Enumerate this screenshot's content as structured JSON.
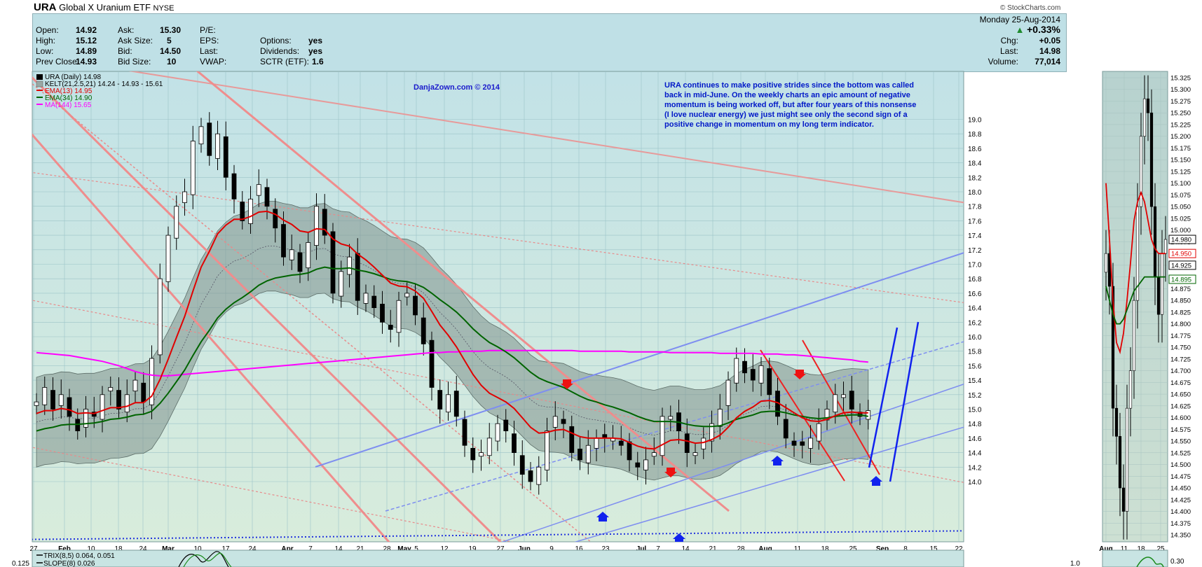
{
  "header": {
    "symbol": "URA",
    "name": "Global X Uranium ETF",
    "exchange": "NYSE",
    "copyright": "© StockCharts.com"
  },
  "quote": {
    "open_label": "Open:",
    "open": "14.92",
    "high_label": "High:",
    "high": "15.12",
    "low_label": "Low:",
    "low": "14.89",
    "prevclose_label": "Prev Close:",
    "prevclose": "14.93",
    "ask_label": "Ask:",
    "ask": "15.30",
    "asksize_label": "Ask Size:",
    "asksize": "5",
    "bid_label": "Bid:",
    "bid": "14.50",
    "bidsize_label": "Bid Size:",
    "bidsize": "10",
    "pe_label": "P/E:",
    "eps_label": "EPS:",
    "last_label": "Last:",
    "vwap_label": "VWAP:",
    "options_label": "Options:",
    "options": "yes",
    "dividends_label": "Dividends:",
    "dividends": "yes",
    "sctr_label": "SCTR (ETF):",
    "sctr": "1.6",
    "date": "Monday 25-Aug-2014",
    "pct_change": "+0.33%",
    "chg_label": "Chg:",
    "chg": "+0.05",
    "last2_label": "Last:",
    "last2": "14.98",
    "volume_label": "Volume:",
    "volume": "77,014"
  },
  "legend": {
    "main": "URA (Daily) 14.98",
    "kelt": "KELT(21,2.5,21) 14.24 - 14.93 - 15.61",
    "ema13": "EMA(13) 14.95",
    "ema34": "EMA(34) 14.90",
    "ma144": "MA(144) 15.65"
  },
  "watermark": "DanjaZown.com © 2014",
  "annotation": "URA continues to make positive strides since the bottom was called back in mid-June. On the weekly charts an epic amount of negative momentum is being worked off, but after four years of this nonsense (I love nuclear energy) we just might see only the second sign of a positive change in momentum on my long term indicator.",
  "colors": {
    "panel_bg": "#c2e2e7",
    "ema13": "#e00000",
    "ema34": "#006400",
    "ma144": "#ff00ff",
    "kelt_fill": "#7a8c88",
    "trend_blue": "#3a4bd8",
    "annotation_text": "#0018c8"
  },
  "chart_data": {
    "type": "candlestick",
    "y_range": [
      13.9,
      19.2
    ],
    "y_ticks": [
      14.0,
      14.2,
      14.4,
      14.6,
      14.8,
      15.0,
      15.2,
      15.4,
      15.6,
      15.8,
      16.0,
      16.2,
      16.4,
      16.6,
      16.8,
      17.0,
      17.2,
      17.4,
      17.6,
      17.8,
      18.0,
      18.2,
      18.4,
      18.6,
      18.8,
      19.0
    ],
    "x_ticks": [
      "27",
      "Feb",
      "10",
      "18",
      "24",
      "Mar",
      "10",
      "17",
      "24",
      "Apr",
      "7",
      "14",
      "21",
      "28",
      "May",
      "5",
      "12",
      "19",
      "27",
      "Jun",
      "9",
      "16",
      "23",
      "Jul",
      "7",
      "14",
      "21",
      "28",
      "Aug",
      "11",
      "18",
      "25",
      "Sep",
      "8",
      "15",
      "22"
    ],
    "x_bold": [
      "Feb",
      "Mar",
      "Apr",
      "May",
      "Jun",
      "Jul",
      "Aug",
      "Sep"
    ],
    "closes": [
      15.1,
      15.3,
      15.0,
      15.2,
      14.9,
      14.7,
      15.0,
      14.9,
      15.2,
      15.3,
      15.0,
      15.2,
      15.4,
      15.1,
      15.7,
      16.8,
      17.4,
      17.8,
      18.0,
      18.7,
      18.9,
      18.5,
      18.8,
      18.2,
      17.9,
      17.6,
      17.9,
      18.1,
      17.8,
      17.5,
      17.1,
      17.2,
      16.9,
      17.3,
      17.8,
      17.4,
      16.6,
      16.9,
      17.1,
      16.5,
      16.6,
      16.4,
      16.2,
      16.1,
      16.5,
      16.6,
      16.3,
      15.9,
      15.3,
      15.0,
      15.2,
      14.9,
      14.5,
      14.3,
      14.4,
      14.6,
      14.8,
      14.7,
      14.4,
      14.1,
      14.0,
      14.2,
      14.7,
      14.9,
      14.8,
      14.4,
      14.3,
      14.5,
      14.6,
      14.6,
      14.6,
      14.5,
      14.3,
      14.2,
      14.3,
      14.4,
      14.9,
      14.9,
      14.7,
      14.4,
      14.4,
      14.6,
      14.8,
      15.0,
      15.4,
      15.7,
      15.5,
      15.4,
      15.6,
      15.2,
      14.9,
      14.6,
      14.5,
      14.5,
      14.6,
      14.8,
      15.0,
      15.2,
      15.2,
      15.0,
      14.9,
      14.98
    ],
    "ema13": [
      14.94,
      14.98,
      14.98,
      15.01,
      14.99,
      14.94,
      14.95,
      14.94,
      14.98,
      15.02,
      15.02,
      15.04,
      15.09,
      15.09,
      15.18,
      15.41,
      15.69,
      15.99,
      16.28,
      16.63,
      16.96,
      17.18,
      17.42,
      17.54,
      17.62,
      17.62,
      17.66,
      17.72,
      17.73,
      17.69,
      17.61,
      17.55,
      17.46,
      17.44,
      17.49,
      17.48,
      17.35,
      17.28,
      17.25,
      17.14,
      17.06,
      16.96,
      16.85,
      16.74,
      16.7,
      16.69,
      16.63,
      16.53,
      16.35,
      16.16,
      16.02,
      15.86,
      15.67,
      15.48,
      15.33,
      15.22,
      15.16,
      15.1,
      15.01,
      14.88,
      14.75,
      14.67,
      14.68,
      14.71,
      14.72,
      14.67,
      14.62,
      14.6,
      14.6,
      14.6,
      14.6,
      14.59,
      14.54,
      14.49,
      14.46,
      14.45,
      14.51,
      14.57,
      14.58,
      14.56,
      14.53,
      14.54,
      14.58,
      14.64,
      14.75,
      14.88,
      14.97,
      15.03,
      15.11,
      15.12,
      15.09,
      15.02,
      14.95,
      14.88,
      14.84,
      14.83,
      14.86,
      14.91,
      14.95,
      14.96,
      14.95,
      14.95
    ],
    "ema34": [
      14.7,
      14.73,
      14.75,
      14.78,
      14.79,
      14.79,
      14.8,
      14.81,
      14.83,
      14.86,
      14.87,
      14.89,
      14.92,
      14.93,
      14.97,
      15.08,
      15.22,
      15.38,
      15.54,
      15.74,
      15.93,
      16.09,
      16.26,
      16.38,
      16.47,
      16.54,
      16.62,
      16.71,
      16.77,
      16.81,
      16.83,
      16.85,
      16.86,
      16.88,
      16.93,
      16.96,
      16.94,
      16.94,
      16.95,
      16.92,
      16.9,
      16.87,
      16.83,
      16.79,
      16.77,
      16.76,
      16.73,
      16.68,
      16.6,
      16.51,
      16.43,
      16.34,
      16.23,
      16.11,
      16.01,
      15.92,
      15.86,
      15.79,
      15.71,
      15.61,
      15.51,
      15.43,
      15.38,
      15.34,
      15.3,
      15.24,
      15.18,
      15.13,
      15.1,
      15.06,
      15.03,
      14.99,
      14.95,
      14.9,
      14.86,
      14.83,
      14.83,
      14.83,
      14.82,
      14.79,
      14.77,
      14.76,
      14.76,
      14.77,
      14.81,
      14.86,
      14.89,
      14.92,
      14.96,
      14.97,
      14.97,
      14.95,
      14.92,
      14.9,
      14.88,
      14.87,
      14.88,
      14.9,
      14.91,
      14.92,
      14.92,
      14.9
    ],
    "ma144": [
      15.78,
      15.77,
      15.76,
      15.75,
      15.74,
      15.72,
      15.7,
      15.68,
      15.66,
      15.63,
      15.6,
      15.56,
      15.52,
      15.49,
      15.47,
      15.46,
      15.46,
      15.47,
      15.48,
      15.49,
      15.5,
      15.51,
      15.52,
      15.53,
      15.54,
      15.55,
      15.56,
      15.57,
      15.58,
      15.59,
      15.6,
      15.61,
      15.62,
      15.63,
      15.64,
      15.65,
      15.66,
      15.67,
      15.68,
      15.69,
      15.7,
      15.71,
      15.72,
      15.73,
      15.74,
      15.75,
      15.76,
      15.77,
      15.78,
      15.78,
      15.79,
      15.79,
      15.8,
      15.8,
      15.8,
      15.81,
      15.81,
      15.81,
      15.81,
      15.81,
      15.81,
      15.81,
      15.81,
      15.81,
      15.81,
      15.81,
      15.8,
      15.8,
      15.8,
      15.8,
      15.8,
      15.8,
      15.79,
      15.79,
      15.79,
      15.79,
      15.79,
      15.78,
      15.78,
      15.78,
      15.78,
      15.78,
      15.78,
      15.77,
      15.77,
      15.77,
      15.77,
      15.77,
      15.76,
      15.76,
      15.76,
      15.75,
      15.75,
      15.74,
      15.73,
      15.72,
      15.71,
      15.7,
      15.69,
      15.68,
      15.66,
      15.65
    ],
    "right_panel": {
      "x_ticks": [
        "Aug",
        "11",
        "18",
        "25"
      ],
      "y_range": [
        14.33,
        15.34
      ],
      "y_ticks": [
        14.35,
        14.375,
        14.4,
        14.425,
        14.45,
        14.475,
        14.5,
        14.525,
        14.55,
        14.575,
        14.6,
        14.625,
        14.65,
        14.675,
        14.7,
        14.725,
        14.75,
        14.775,
        14.8,
        14.825,
        14.85,
        14.875,
        14.9,
        14.925,
        14.95,
        14.975,
        15.0,
        15.025,
        15.05,
        15.075,
        15.1,
        15.125,
        15.15,
        15.175,
        15.2,
        15.225,
        15.25,
        15.275,
        15.3,
        15.325
      ],
      "price_tags": [
        "14.980",
        "14.950",
        "14.925",
        "14.895"
      ]
    },
    "indicator": {
      "trix_label": "TRIX(8,5) 0.064, 0.051",
      "slope_label": "SLOPE(8) 0.026",
      "left_value": "0.125",
      "right_value": "1.0",
      "right_panel_value": "0.30"
    }
  }
}
